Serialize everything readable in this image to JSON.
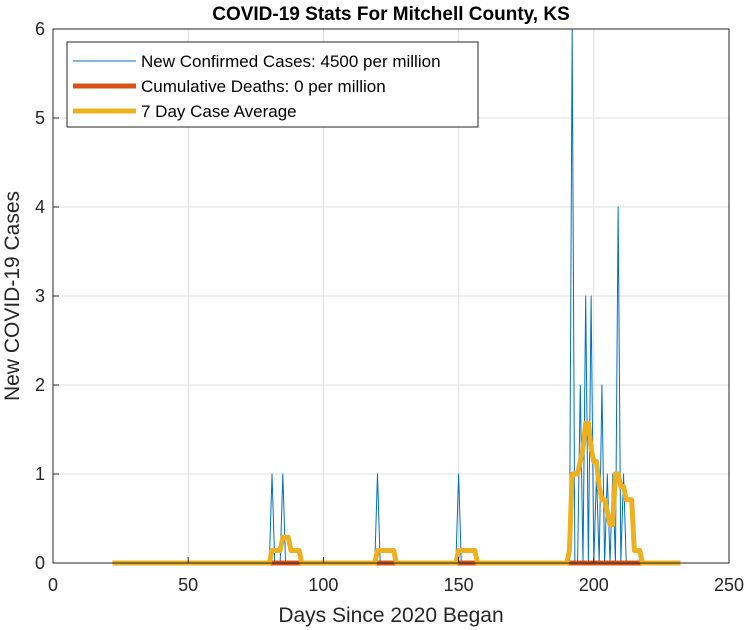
{
  "chart_data": {
    "type": "line",
    "title": "COVID-19 Stats For Mitchell County, KS",
    "xlabel": "Days Since 2020 Began",
    "ylabel": "New COVID-19 Cases",
    "xlim": [
      0,
      250
    ],
    "ylim": [
      0,
      6
    ],
    "xticks": [
      0,
      50,
      100,
      150,
      200,
      250
    ],
    "yticks": [
      0,
      1,
      2,
      3,
      4,
      5,
      6
    ],
    "grid": true,
    "legend_position": "top-left",
    "series": [
      {
        "name": "New Confirmed Cases: 4500 per million",
        "color": "#0072BD",
        "style": "thin",
        "points": [
          [
            22,
            0
          ],
          [
            80,
            0
          ],
          [
            81,
            1
          ],
          [
            82,
            0
          ],
          [
            84,
            0
          ],
          [
            85,
            1
          ],
          [
            86,
            0
          ],
          [
            119,
            0
          ],
          [
            120,
            1
          ],
          [
            121,
            0
          ],
          [
            149,
            0
          ],
          [
            150,
            1
          ],
          [
            151,
            0
          ],
          [
            191,
            0
          ],
          [
            192,
            6
          ],
          [
            193,
            0
          ],
          [
            194,
            0
          ],
          [
            195,
            2
          ],
          [
            196,
            0
          ],
          [
            197,
            3
          ],
          [
            198,
            0
          ],
          [
            199,
            3
          ],
          [
            200,
            0
          ],
          [
            201,
            1
          ],
          [
            202,
            0
          ],
          [
            203,
            2
          ],
          [
            204,
            0
          ],
          [
            205,
            1
          ],
          [
            206,
            0
          ],
          [
            207,
            1
          ],
          [
            208,
            0
          ],
          [
            209,
            4
          ],
          [
            210,
            0
          ],
          [
            211,
            1
          ],
          [
            212,
            0
          ],
          [
            232,
            0
          ]
        ]
      },
      {
        "name": "Cumulative Deaths: 0 per million",
        "color": "#D95319",
        "style": "thick",
        "points": [
          [
            22,
            0
          ],
          [
            232,
            0
          ]
        ]
      },
      {
        "name": "7 Day Case Average",
        "color": "#EDB120",
        "style": "thick",
        "points": [
          [
            22,
            0
          ],
          [
            80,
            0
          ],
          [
            81,
            0.14
          ],
          [
            84,
            0.14
          ],
          [
            85,
            0.29
          ],
          [
            87,
            0.29
          ],
          [
            88,
            0.14
          ],
          [
            91,
            0.14
          ],
          [
            92,
            0
          ],
          [
            119,
            0
          ],
          [
            120,
            0.14
          ],
          [
            126,
            0.14
          ],
          [
            127,
            0
          ],
          [
            149,
            0
          ],
          [
            150,
            0.14
          ],
          [
            156,
            0.14
          ],
          [
            157,
            0
          ],
          [
            190,
            0
          ],
          [
            191,
            0.14
          ],
          [
            192,
            1.0
          ],
          [
            194,
            1.0
          ],
          [
            195,
            1.14
          ],
          [
            196,
            1.29
          ],
          [
            197,
            1.57
          ],
          [
            198,
            1.57
          ],
          [
            199,
            1.29
          ],
          [
            200,
            1.14
          ],
          [
            201,
            1.14
          ],
          [
            202,
            0.86
          ],
          [
            203,
            0.71
          ],
          [
            204,
            0.71
          ],
          [
            205,
            0.57
          ],
          [
            206,
            0.43
          ],
          [
            207,
            0.43
          ],
          [
            208,
            1.0
          ],
          [
            209,
            1.0
          ],
          [
            210,
            0.86
          ],
          [
            211,
            0.86
          ],
          [
            212,
            0.71
          ],
          [
            214,
            0.71
          ],
          [
            215,
            0.14
          ],
          [
            217,
            0.14
          ],
          [
            218,
            0
          ],
          [
            232,
            0
          ]
        ]
      }
    ]
  }
}
